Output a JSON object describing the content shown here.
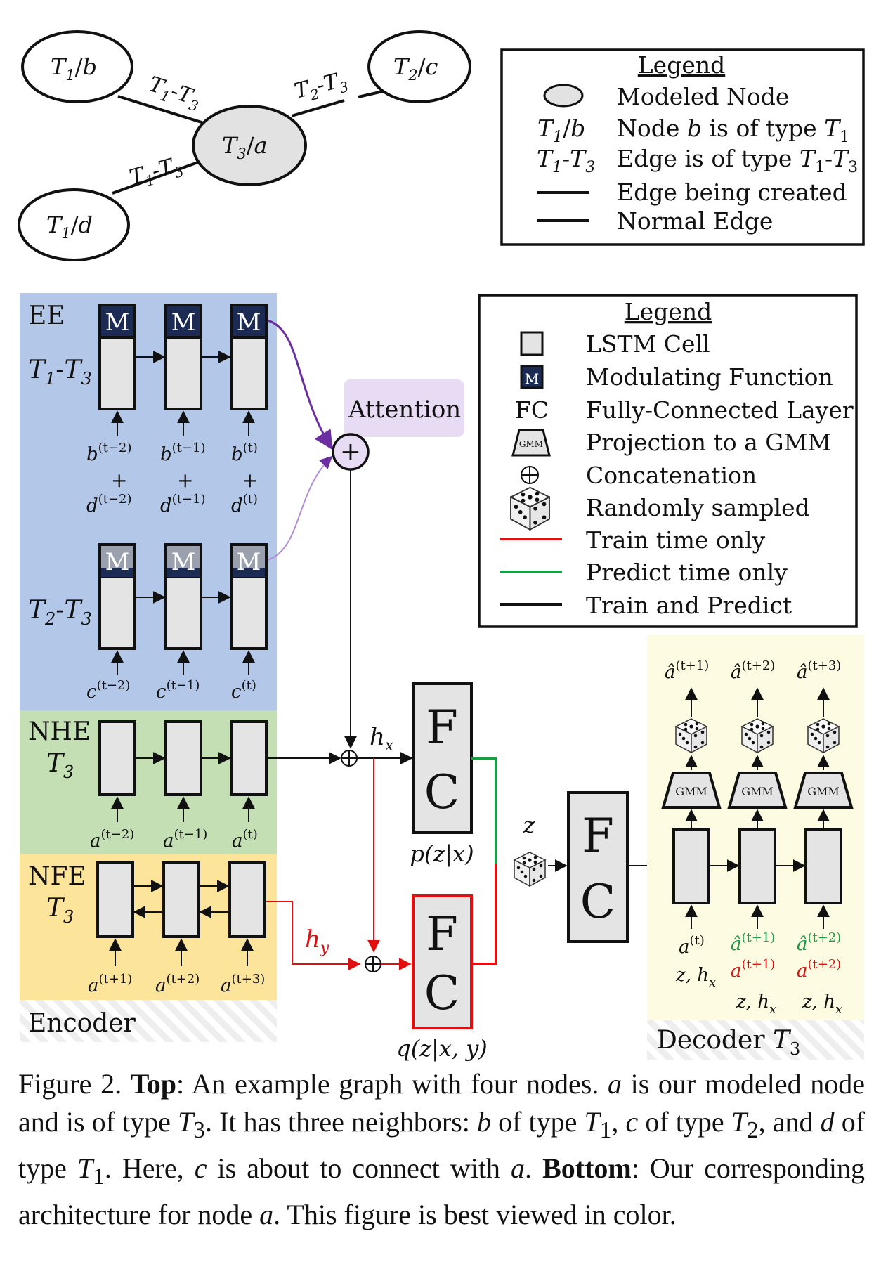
{
  "graph": {
    "nodes": {
      "t1b": {
        "type": "T",
        "type_sub": "1",
        "name": "b"
      },
      "t2c": {
        "type": "T",
        "type_sub": "2",
        "name": "c"
      },
      "t3a": {
        "type": "T",
        "type_sub": "3",
        "name": "a"
      },
      "t1d": {
        "type": "T",
        "type_sub": "1",
        "name": "d"
      }
    },
    "edges": {
      "b_a": {
        "left": "T",
        "left_sub": "1",
        "right": "T",
        "right_sub": "3"
      },
      "c_a": {
        "left": "T",
        "left_sub": "2",
        "right": "T",
        "right_sub": "3"
      },
      "d_a": {
        "left": "T",
        "left_sub": "1",
        "right": "T",
        "right_sub": "3"
      }
    }
  },
  "legend_top": {
    "title": "Legend",
    "modeled_node": "Modeled Node",
    "node_type_sym": {
      "a": "T",
      "sub": "1",
      "b": "b"
    },
    "node_type_desc": {
      "pre": "Node ",
      "b": "b",
      "mid": " is of type ",
      "t": "T",
      "sub": "1"
    },
    "edge_type_sym": {
      "a": "T",
      "a_sub": "1",
      "b": "T",
      "b_sub": "3"
    },
    "edge_type_desc": {
      "pre": "Edge is of type ",
      "a": "T",
      "a_sub": "1",
      "b": "T",
      "b_sub": "3"
    },
    "edge_created": "Edge being created",
    "normal_edge": "Normal Edge"
  },
  "legend_bottom": {
    "title": "Legend",
    "lstm_cell": "LSTM Cell",
    "mod_icon": "M",
    "mod_fn": "Modulating Function",
    "fc_sym": "FC",
    "fc_desc": "Fully-Connected Layer",
    "gmm_icon": "GMM",
    "gmm_desc": "Projection to a GMM",
    "concat_desc": "Concatenation",
    "random_desc": "Randomly sampled",
    "train_only": "Train time only",
    "predict_only": "Predict time only",
    "train_predict": "Train and Predict"
  },
  "encoder": {
    "ee_label": "EE",
    "row1": {
      "a": "T",
      "a_sub": "1",
      "b": "T",
      "b_sub": "3"
    },
    "row2": {
      "a": "T",
      "a_sub": "2",
      "b": "T",
      "b_sub": "3"
    },
    "m_label": "M",
    "inputs_b": [
      {
        "base": "b",
        "sup": "(t−2)"
      },
      {
        "base": "b",
        "sup": "(t−1)"
      },
      {
        "base": "b",
        "sup": "(t)"
      }
    ],
    "plus": "+",
    "inputs_d": [
      {
        "base": "d",
        "sup": "(t−2)"
      },
      {
        "base": "d",
        "sup": "(t−1)"
      },
      {
        "base": "d",
        "sup": "(t)"
      }
    ],
    "inputs_c": [
      {
        "base": "c",
        "sup": "(t−2)"
      },
      {
        "base": "c",
        "sup": "(t−1)"
      },
      {
        "base": "c",
        "sup": "(t)"
      }
    ],
    "nhe_label": "NHE",
    "nhe_type": {
      "t": "T",
      "sub": "3"
    },
    "inputs_a_past": [
      {
        "base": "a",
        "sup": "(t−2)"
      },
      {
        "base": "a",
        "sup": "(t−1)"
      },
      {
        "base": "a",
        "sup": "(t)"
      }
    ],
    "nfe_label": "NFE",
    "nfe_type": {
      "t": "T",
      "sub": "3"
    },
    "inputs_a_future": [
      {
        "base": "a",
        "sup": "(t+1)"
      },
      {
        "base": "a",
        "sup": "(t+2)"
      },
      {
        "base": "a",
        "sup": "(t+3)"
      }
    ],
    "title": "Encoder"
  },
  "attention": {
    "label": "Attention",
    "sym": "+"
  },
  "middle": {
    "hx": {
      "base": "h",
      "sub": "x"
    },
    "hy": {
      "base": "h",
      "sub": "y"
    },
    "fc_top_f": "F",
    "fc_top_c": "C",
    "pzx": "p(z|x)",
    "fc_bot_f": "F",
    "fc_bot_c": "C",
    "qzxy": "q(z|x, y)",
    "z": "z",
    "fc_dec_f": "F",
    "fc_dec_c": "C"
  },
  "decoder": {
    "title": "Decoder ",
    "title_t": "T",
    "title_sub": "3",
    "gmm_label": "GMM",
    "outputs": [
      {
        "base": "â",
        "sup": "(t+1)"
      },
      {
        "base": "â",
        "sup": "(t+2)"
      },
      {
        "base": "â",
        "sup": "(t+3)"
      }
    ],
    "in1_a": {
      "base": "a",
      "sup": "(t)"
    },
    "in_pred": [
      {
        "base": "â",
        "sup": "(t+1)"
      },
      {
        "base": "â",
        "sup": "(t+2)"
      }
    ],
    "in_train": [
      {
        "base": "a",
        "sup": "(t+1)"
      },
      {
        "base": "a",
        "sup": "(t+2)"
      }
    ],
    "zh_label": {
      "pre": "z, h",
      "sub": "x"
    }
  },
  "caption": {
    "fig_num": "Figure 2. ",
    "top_bold": "Top",
    "top_text_1": ": An example graph with four nodes. ",
    "a1": "a",
    "top_text_2": " is our modeled node and is of type ",
    "t3": "T",
    "t3_sub": "3",
    "top_text_3": ". It has three neighbors: ",
    "b": "b",
    "top_text_4": " of type ",
    "t1a": "T",
    "t1a_sub": "1",
    "top_text_5": ", ",
    "c": "c",
    "top_text_6": " of type ",
    "t2": "T",
    "t2_sub": "2",
    "top_text_7": ", and ",
    "d": "d",
    "top_text_8": " of type ",
    "t1b": "T",
    "t1b_sub": "1",
    "top_text_9": ". Here, ",
    "c2": "c",
    "top_text_10": " is about to connect with ",
    "a2": "a",
    "top_text_11": ".",
    "bottom_bold": "Bottom",
    "bottom_text_1": ": Our corresponding architecture for node ",
    "a3": "a",
    "bottom_text_2": ". This figure is best viewed in color."
  }
}
